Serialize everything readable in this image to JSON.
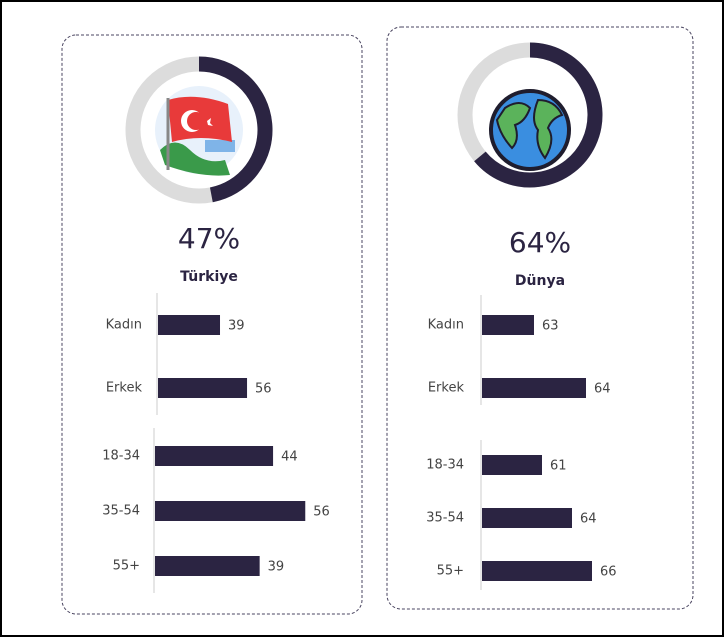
{
  "chart_data": [
    {
      "type": "donut",
      "title": "Türkiye",
      "values": [
        47
      ],
      "value_labels": [
        "47%"
      ],
      "ylim": [
        0,
        100
      ],
      "color": "#2b2442",
      "track_color": "#dcdcdc"
    },
    {
      "type": "bar",
      "orientation": "horizontal",
      "categories": [
        "Kadın",
        "Erkek"
      ],
      "values": [
        39,
        56
      ],
      "xlim": [
        0,
        100
      ],
      "color": "#2b2442"
    },
    {
      "type": "bar",
      "orientation": "horizontal",
      "categories": [
        "18-34",
        "35-54",
        "55+"
      ],
      "values": [
        44,
        56,
        39
      ],
      "xlim": [
        0,
        60
      ],
      "color": "#2b2442"
    },
    {
      "type": "donut",
      "title": "Dünya",
      "values": [
        64
      ],
      "value_labels": [
        "64%"
      ],
      "ylim": [
        0,
        100
      ],
      "color": "#2b2442",
      "track_color": "#dcdcdc"
    },
    {
      "type": "bar",
      "orientation": "horizontal",
      "categories": [
        "Kadın",
        "Erkek"
      ],
      "values": [
        63,
        64
      ],
      "xlim": [
        62,
        65
      ],
      "color": "#2b2442"
    },
    {
      "type": "bar",
      "orientation": "horizontal",
      "categories": [
        "18-34",
        "35-54",
        "55+"
      ],
      "values": [
        61,
        64,
        66
      ],
      "xlim": [
        55,
        70
      ],
      "color": "#2b2442"
    }
  ]
}
